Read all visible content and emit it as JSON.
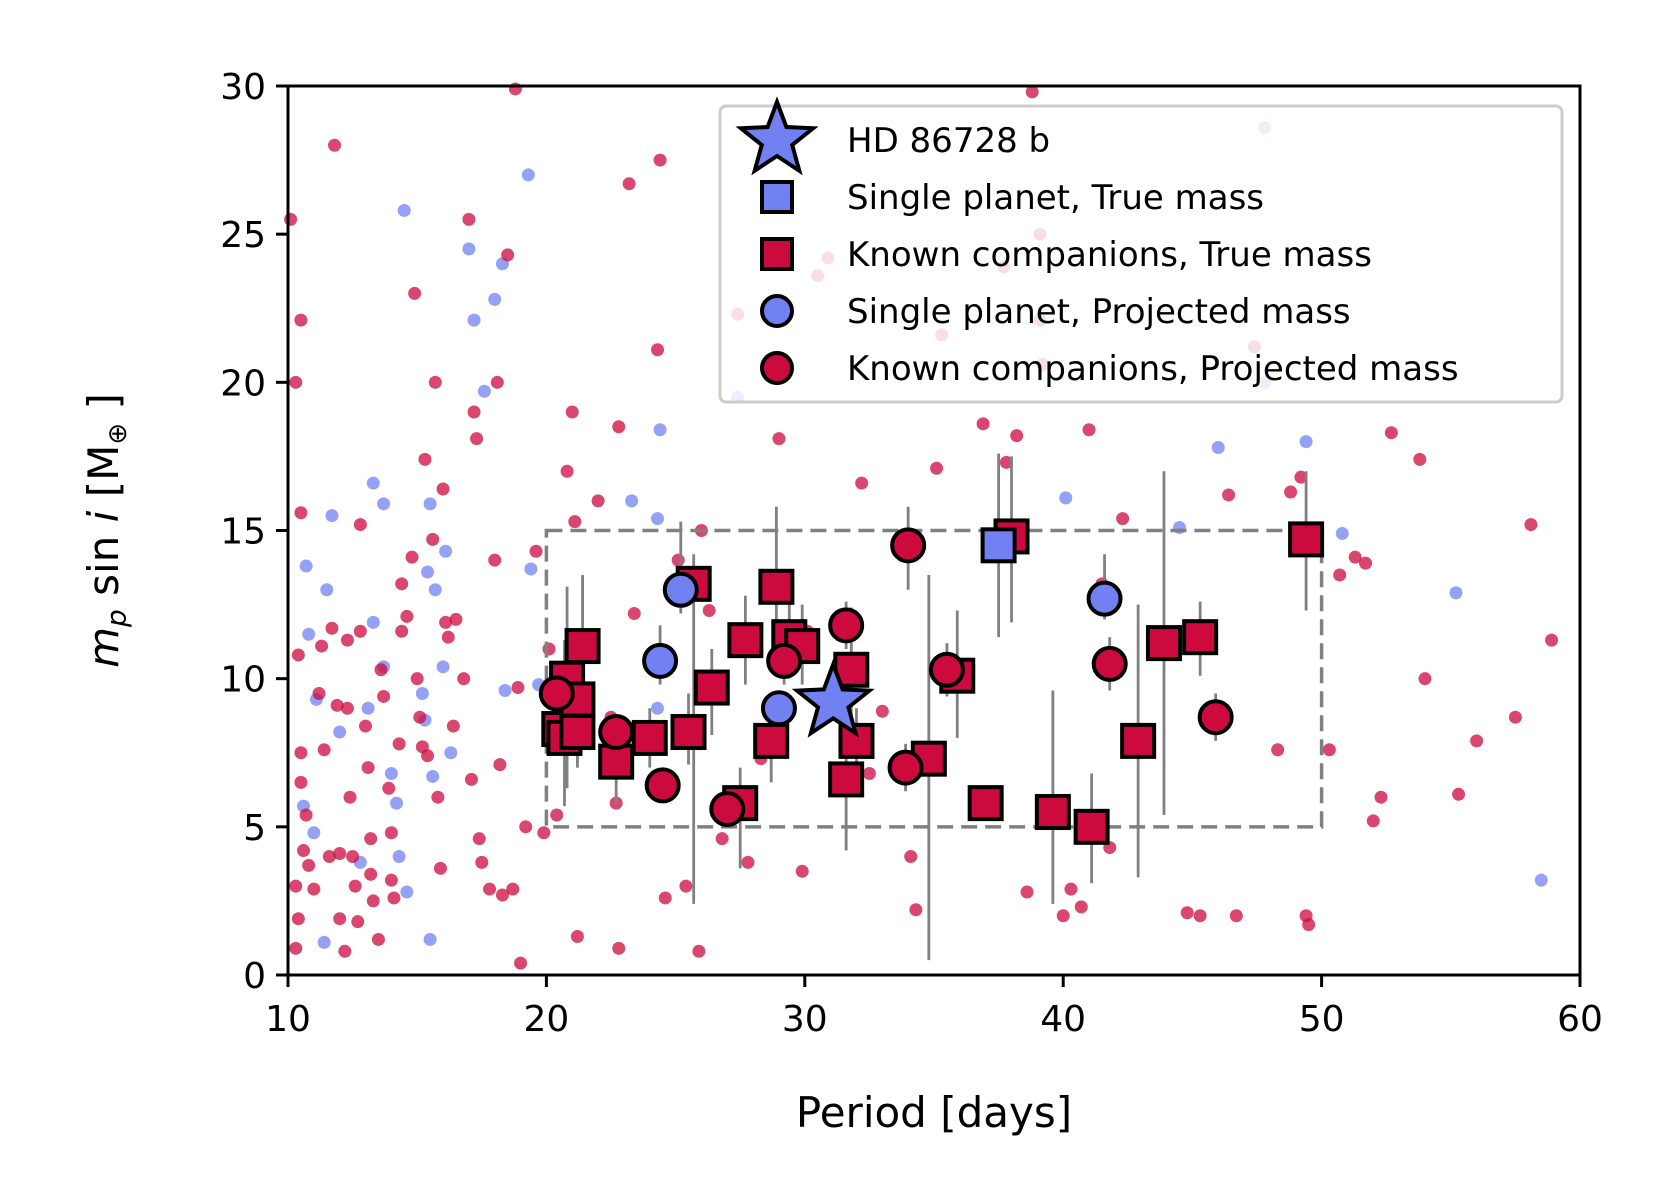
{
  "colors": {
    "single": "#7281f2",
    "companions": "#cc0a3d",
    "edge": "#000000",
    "errorbar": "#808080",
    "box": "#808080"
  },
  "chart_data": {
    "type": "scatter",
    "title": "",
    "xlabel": "Period [days]",
    "ylabel_parts": {
      "main": "m",
      "sub": "p",
      "mid": " sin ",
      "italic": "i",
      "unit_open": " [M",
      "unit_sub": "⊕",
      "unit_close": " ]"
    },
    "xlim": [
      10,
      60
    ],
    "ylim": [
      0,
      30
    ],
    "xticks": [
      10,
      20,
      30,
      40,
      50,
      60
    ],
    "yticks": [
      0,
      5,
      10,
      15,
      20,
      25,
      30
    ],
    "xtick_labels": [
      "10",
      "20",
      "30",
      "40",
      "50",
      "60"
    ],
    "ytick_labels": [
      "0",
      "5",
      "10",
      "15",
      "20",
      "25",
      "30"
    ],
    "selection_box": {
      "x": [
        20,
        50
      ],
      "y": [
        5,
        15
      ]
    },
    "legend": {
      "placement": "top-right",
      "entries": [
        {
          "label": "HD 86728 b",
          "marker": "star",
          "color": "single"
        },
        {
          "label": "Single planet, True mass",
          "marker": "square",
          "color": "single"
        },
        {
          "label": "Known companions, True mass",
          "marker": "square",
          "color": "companions"
        },
        {
          "label": "Single planet, Projected mass",
          "marker": "circle",
          "color": "single"
        },
        {
          "label": "Known companions, Projected mass",
          "marker": "circle",
          "color": "companions"
        }
      ]
    },
    "target": {
      "name": "HD 86728 b",
      "period": 31.1,
      "mass": 9.2
    },
    "selected_planets": [
      {
        "group": "companions",
        "mass_type": "true",
        "period": 20.5,
        "mass": 8.3,
        "err": [
          7.5,
          9.4
        ]
      },
      {
        "group": "companions",
        "mass_type": "true",
        "period": 20.7,
        "mass": 8.0,
        "err": [
          5.7,
          11.3
        ]
      },
      {
        "group": "companions",
        "mass_type": "true",
        "period": 20.8,
        "mass": 10.0,
        "err": [
          6.3,
          13.1
        ]
      },
      {
        "group": "companions",
        "mass_type": "true",
        "period": 21.2,
        "mass": 9.3,
        "err": [
          7.2,
          11.0
        ]
      },
      {
        "group": "companions",
        "mass_type": "true",
        "period": 21.2,
        "mass": 8.2,
        "err": [
          7.0,
          9.8
        ]
      },
      {
        "group": "companions",
        "mass_type": "true",
        "period": 21.4,
        "mass": 11.1,
        "err": [
          8.2,
          13.5
        ]
      },
      {
        "group": "companions",
        "mass_type": "true",
        "period": 22.7,
        "mass": 7.2,
        "err": [
          5.8,
          8.6
        ]
      },
      {
        "group": "companions",
        "mass_type": "true",
        "period": 24.0,
        "mass": 8.0,
        "err": [
          7.0,
          9.0
        ]
      },
      {
        "group": "companions",
        "mass_type": "true",
        "period": 25.5,
        "mass": 8.2,
        "err": [
          7.1,
          9.5
        ]
      },
      {
        "group": "companions",
        "mass_type": "true",
        "period": 25.7,
        "mass": 13.2,
        "err": [
          2.4,
          14.2
        ]
      },
      {
        "group": "companions",
        "mass_type": "true",
        "period": 26.4,
        "mass": 9.7,
        "err": [
          8.1,
          11.0
        ]
      },
      {
        "group": "companions",
        "mass_type": "true",
        "period": 27.5,
        "mass": 5.8,
        "err": [
          3.6,
          7.0
        ]
      },
      {
        "group": "companions",
        "mass_type": "true",
        "period": 27.7,
        "mass": 11.3,
        "err": [
          9.8,
          12.8
        ]
      },
      {
        "group": "companions",
        "mass_type": "true",
        "period": 28.7,
        "mass": 7.9,
        "err": [
          6.5,
          9.4
        ]
      },
      {
        "group": "companions",
        "mass_type": "true",
        "period": 28.9,
        "mass": 13.1,
        "err": [
          11.3,
          15.8
        ]
      },
      {
        "group": "companions",
        "mass_type": "true",
        "period": 29.4,
        "mass": 11.4,
        "err": [
          10.0,
          12.8
        ]
      },
      {
        "group": "companions",
        "mass_type": "true",
        "period": 29.9,
        "mass": 11.1,
        "err": [
          9.8,
          12.5
        ]
      },
      {
        "group": "companions",
        "mass_type": "true",
        "period": 31.6,
        "mass": 6.6,
        "err": [
          4.2,
          9.0
        ]
      },
      {
        "group": "companions",
        "mass_type": "true",
        "period": 31.8,
        "mass": 10.3,
        "err": [
          8.2,
          12.4
        ]
      },
      {
        "group": "companions",
        "mass_type": "true",
        "period": 32.0,
        "mass": 7.9,
        "err": [
          6.8,
          9.0
        ]
      },
      {
        "group": "companions",
        "mass_type": "true",
        "period": 34.8,
        "mass": 7.3,
        "err": [
          0.5,
          13.5
        ]
      },
      {
        "group": "companions",
        "mass_type": "true",
        "period": 35.9,
        "mass": 10.1,
        "err": [
          8.0,
          12.3
        ]
      },
      {
        "group": "companions",
        "mass_type": "true",
        "period": 37.0,
        "mass": 5.8,
        "err": [
          5.2,
          6.4
        ]
      },
      {
        "group": "companions",
        "mass_type": "true",
        "period": 38.0,
        "mass": 14.8,
        "err": [
          11.9,
          17.5
        ]
      },
      {
        "group": "companions",
        "mass_type": "true",
        "period": 39.6,
        "mass": 5.5,
        "err": [
          2.4,
          9.6
        ]
      },
      {
        "group": "companions",
        "mass_type": "true",
        "period": 41.1,
        "mass": 5.0,
        "err": [
          3.1,
          6.8
        ]
      },
      {
        "group": "companions",
        "mass_type": "true",
        "period": 42.9,
        "mass": 7.9,
        "err": [
          3.3,
          12.5
        ]
      },
      {
        "group": "companions",
        "mass_type": "true",
        "period": 43.9,
        "mass": 11.2,
        "err": [
          5.4,
          17.0
        ]
      },
      {
        "group": "companions",
        "mass_type": "true",
        "period": 45.3,
        "mass": 11.4,
        "err": [
          10.1,
          12.6
        ]
      },
      {
        "group": "companions",
        "mass_type": "true",
        "period": 49.4,
        "mass": 14.7,
        "err": [
          12.3,
          17.0
        ]
      },
      {
        "group": "single",
        "mass_type": "true",
        "period": 37.5,
        "mass": 14.5,
        "err": [
          11.4,
          17.6
        ]
      },
      {
        "group": "companions",
        "mass_type": "projected",
        "period": 20.4,
        "mass": 9.5,
        "err": [
          8.6,
          10.4
        ]
      },
      {
        "group": "companions",
        "mass_type": "projected",
        "period": 22.7,
        "mass": 8.2,
        "err": [
          7.6,
          8.8
        ]
      },
      {
        "group": "companions",
        "mass_type": "projected",
        "period": 24.5,
        "mass": 6.4,
        "err": [
          6.0,
          6.8
        ]
      },
      {
        "group": "companions",
        "mass_type": "projected",
        "period": 27.0,
        "mass": 5.6,
        "err": [
          5.0,
          6.2
        ]
      },
      {
        "group": "companions",
        "mass_type": "projected",
        "period": 29.2,
        "mass": 10.6,
        "err": [
          9.8,
          11.4
        ]
      },
      {
        "group": "companions",
        "mass_type": "projected",
        "period": 31.6,
        "mass": 11.8,
        "err": [
          11.0,
          12.6
        ]
      },
      {
        "group": "companions",
        "mass_type": "projected",
        "period": 33.9,
        "mass": 7.0,
        "err": [
          6.2,
          7.8
        ]
      },
      {
        "group": "companions",
        "mass_type": "projected",
        "period": 34.0,
        "mass": 14.5,
        "err": [
          13.0,
          15.8
        ]
      },
      {
        "group": "companions",
        "mass_type": "projected",
        "period": 35.5,
        "mass": 10.3,
        "err": [
          9.4,
          11.2
        ]
      },
      {
        "group": "companions",
        "mass_type": "projected",
        "period": 41.8,
        "mass": 10.5,
        "err": [
          9.6,
          11.4
        ]
      },
      {
        "group": "companions",
        "mass_type": "projected",
        "period": 45.9,
        "mass": 8.7,
        "err": [
          7.9,
          9.5
        ]
      },
      {
        "group": "single",
        "mass_type": "projected",
        "period": 25.2,
        "mass": 13.0,
        "err": [
          12.2,
          15.3
        ]
      },
      {
        "group": "single",
        "mass_type": "projected",
        "period": 24.4,
        "mass": 10.6,
        "err": [
          9.8,
          11.8
        ]
      },
      {
        "group": "single",
        "mass_type": "projected",
        "period": 29.0,
        "mass": 9.0,
        "err": [
          8.4,
          9.6
        ]
      },
      {
        "group": "single",
        "mass_type": "projected",
        "period": 41.6,
        "mass": 12.7,
        "err": [
          12.0,
          14.2
        ]
      }
    ],
    "background_single": [
      [
        10.7,
        13.8
      ],
      [
        10.8,
        11.5
      ],
      [
        11.1,
        9.3
      ],
      [
        10.6,
        5.7
      ],
      [
        11.0,
        4.8
      ],
      [
        11.4,
        1.1
      ],
      [
        11.7,
        15.5
      ],
      [
        11.5,
        13.0
      ],
      [
        12.0,
        8.2
      ],
      [
        12.8,
        3.8
      ],
      [
        13.1,
        9.0
      ],
      [
        13.3,
        16.6
      ],
      [
        13.3,
        11.9
      ],
      [
        13.7,
        15.9
      ],
      [
        13.7,
        10.4
      ],
      [
        14.0,
        6.8
      ],
      [
        14.2,
        5.8
      ],
      [
        14.5,
        25.8
      ],
      [
        14.3,
        4.0
      ],
      [
        14.6,
        2.8
      ],
      [
        15.2,
        9.5
      ],
      [
        15.3,
        8.6
      ],
      [
        15.4,
        13.6
      ],
      [
        15.5,
        15.9
      ],
      [
        15.6,
        6.7
      ],
      [
        15.5,
        1.2
      ],
      [
        15.7,
        13.0
      ],
      [
        16.0,
        10.4
      ],
      [
        16.1,
        14.3
      ],
      [
        16.3,
        7.5
      ],
      [
        17.0,
        24.5
      ],
      [
        17.2,
        22.1
      ],
      [
        17.6,
        19.7
      ],
      [
        18.0,
        22.8
      ],
      [
        18.3,
        24.0
      ],
      [
        18.4,
        9.6
      ],
      [
        19.3,
        27.0
      ],
      [
        19.4,
        13.7
      ],
      [
        19.7,
        9.8
      ],
      [
        23.3,
        16.0
      ],
      [
        24.3,
        15.4
      ],
      [
        24.4,
        18.4
      ],
      [
        24.3,
        9.0
      ],
      [
        27.4,
        19.5
      ],
      [
        40.1,
        16.1
      ],
      [
        44.5,
        15.1
      ],
      [
        46.0,
        17.8
      ],
      [
        47.8,
        28.6
      ],
      [
        47.8,
        20.0
      ],
      [
        49.4,
        18.0
      ],
      [
        50.8,
        14.9
      ],
      [
        55.2,
        12.9
      ],
      [
        58.5,
        3.2
      ]
    ],
    "background_companions": [
      [
        10.1,
        25.5
      ],
      [
        10.5,
        22.1
      ],
      [
        10.3,
        20.0
      ],
      [
        10.5,
        15.6
      ],
      [
        10.4,
        10.8
      ],
      [
        10.5,
        7.5
      ],
      [
        10.5,
        6.5
      ],
      [
        10.7,
        5.4
      ],
      [
        10.6,
        4.2
      ],
      [
        10.3,
        3.0
      ],
      [
        10.4,
        1.9
      ],
      [
        10.3,
        0.9
      ],
      [
        10.8,
        3.7
      ],
      [
        11.0,
        2.9
      ],
      [
        11.2,
        9.5
      ],
      [
        11.3,
        11.1
      ],
      [
        11.4,
        7.6
      ],
      [
        11.6,
        4.0
      ],
      [
        11.8,
        28.0
      ],
      [
        11.7,
        11.7
      ],
      [
        11.9,
        9.1
      ],
      [
        12.0,
        4.1
      ],
      [
        12.0,
        1.9
      ],
      [
        12.2,
        0.8
      ],
      [
        12.3,
        11.3
      ],
      [
        12.3,
        9.0
      ],
      [
        12.4,
        6.0
      ],
      [
        12.5,
        4.0
      ],
      [
        12.6,
        3.0
      ],
      [
        12.7,
        1.8
      ],
      [
        12.8,
        15.2
      ],
      [
        12.8,
        11.6
      ],
      [
        13.0,
        8.4
      ],
      [
        13.1,
        7.0
      ],
      [
        13.2,
        4.6
      ],
      [
        13.2,
        3.4
      ],
      [
        13.3,
        2.5
      ],
      [
        13.5,
        1.2
      ],
      [
        13.6,
        10.3
      ],
      [
        13.7,
        9.4
      ],
      [
        13.9,
        6.3
      ],
      [
        14.0,
        4.8
      ],
      [
        14.0,
        3.2
      ],
      [
        14.1,
        2.6
      ],
      [
        14.3,
        7.8
      ],
      [
        14.4,
        11.6
      ],
      [
        14.4,
        13.2
      ],
      [
        14.6,
        12.1
      ],
      [
        14.8,
        14.1
      ],
      [
        14.9,
        23.0
      ],
      [
        15.0,
        10.0
      ],
      [
        15.1,
        8.7
      ],
      [
        15.2,
        7.7
      ],
      [
        15.3,
        17.4
      ],
      [
        15.4,
        7.4
      ],
      [
        15.6,
        14.7
      ],
      [
        15.7,
        20.0
      ],
      [
        15.8,
        6.0
      ],
      [
        15.9,
        3.6
      ],
      [
        16.0,
        16.4
      ],
      [
        16.1,
        11.9
      ],
      [
        16.2,
        11.4
      ],
      [
        16.4,
        8.4
      ],
      [
        16.5,
        12.0
      ],
      [
        16.8,
        10.0
      ],
      [
        17.0,
        25.5
      ],
      [
        17.1,
        6.6
      ],
      [
        17.2,
        19.0
      ],
      [
        17.3,
        18.1
      ],
      [
        17.4,
        4.6
      ],
      [
        17.5,
        3.8
      ],
      [
        17.8,
        2.9
      ],
      [
        18.0,
        14.0
      ],
      [
        18.1,
        20.0
      ],
      [
        18.2,
        7.1
      ],
      [
        18.3,
        2.7
      ],
      [
        18.5,
        24.3
      ],
      [
        18.7,
        2.9
      ],
      [
        18.8,
        29.9
      ],
      [
        18.9,
        9.7
      ],
      [
        19.0,
        0.4
      ],
      [
        19.2,
        5.0
      ],
      [
        19.6,
        14.3
      ],
      [
        19.9,
        4.8
      ],
      [
        20.1,
        11.0
      ],
      [
        20.4,
        5.4
      ],
      [
        20.8,
        17.0
      ],
      [
        21.0,
        19.0
      ],
      [
        21.1,
        15.3
      ],
      [
        21.2,
        1.3
      ],
      [
        21.2,
        10.7
      ],
      [
        22.0,
        16.0
      ],
      [
        22.5,
        8.7
      ],
      [
        22.8,
        18.5
      ],
      [
        22.8,
        0.9
      ],
      [
        22.7,
        5.8
      ],
      [
        23.2,
        26.7
      ],
      [
        23.4,
        12.2
      ],
      [
        24.3,
        21.1
      ],
      [
        24.4,
        27.5
      ],
      [
        24.6,
        2.6
      ],
      [
        25.1,
        14.0
      ],
      [
        25.4,
        3.0
      ],
      [
        25.8,
        13.5
      ],
      [
        25.9,
        0.8
      ],
      [
        26.0,
        15.0
      ],
      [
        26.3,
        12.3
      ],
      [
        26.8,
        4.6
      ],
      [
        27.4,
        22.3
      ],
      [
        27.8,
        3.8
      ],
      [
        28.3,
        7.3
      ],
      [
        29.0,
        18.1
      ],
      [
        29.9,
        3.5
      ],
      [
        30.1,
        11.6
      ],
      [
        30.5,
        23.6
      ],
      [
        30.9,
        24.2
      ],
      [
        31.5,
        6.4
      ],
      [
        32.2,
        16.6
      ],
      [
        32.5,
        6.8
      ],
      [
        33.0,
        8.9
      ],
      [
        34.1,
        4.0
      ],
      [
        34.3,
        2.2
      ],
      [
        35.1,
        17.1
      ],
      [
        35.4,
        10.6
      ],
      [
        36.9,
        18.6
      ],
      [
        38.2,
        18.2
      ],
      [
        38.6,
        2.8
      ],
      [
        38.8,
        29.8
      ],
      [
        40.0,
        2.0
      ],
      [
        40.3,
        2.9
      ],
      [
        40.7,
        2.3
      ],
      [
        41.0,
        18.4
      ],
      [
        41.5,
        13.2
      ],
      [
        41.8,
        4.3
      ],
      [
        42.3,
        15.4
      ],
      [
        44.8,
        2.1
      ],
      [
        45.3,
        2.0
      ],
      [
        46.4,
        16.2
      ],
      [
        46.7,
        2.0
      ],
      [
        48.3,
        7.6
      ],
      [
        48.8,
        16.3
      ],
      [
        49.2,
        16.8
      ],
      [
        49.4,
        2.0
      ],
      [
        49.5,
        1.7
      ],
      [
        50.3,
        7.6
      ],
      [
        50.7,
        13.5
      ],
      [
        51.3,
        14.1
      ],
      [
        51.7,
        13.9
      ],
      [
        52.0,
        5.2
      ],
      [
        52.3,
        6.0
      ],
      [
        52.7,
        18.3
      ],
      [
        53.8,
        17.4
      ],
      [
        54.0,
        10.0
      ],
      [
        55.3,
        6.1
      ],
      [
        56.0,
        7.9
      ],
      [
        57.5,
        8.7
      ],
      [
        58.1,
        15.2
      ],
      [
        58.9,
        11.3
      ],
      [
        39.1,
        25.0
      ],
      [
        39.1,
        22.1
      ],
      [
        37.7,
        23.9
      ],
      [
        39.2,
        20.6
      ],
      [
        37.8,
        17.3
      ],
      [
        35.3,
        21.6
      ],
      [
        47.4,
        21.2
      ]
    ]
  }
}
